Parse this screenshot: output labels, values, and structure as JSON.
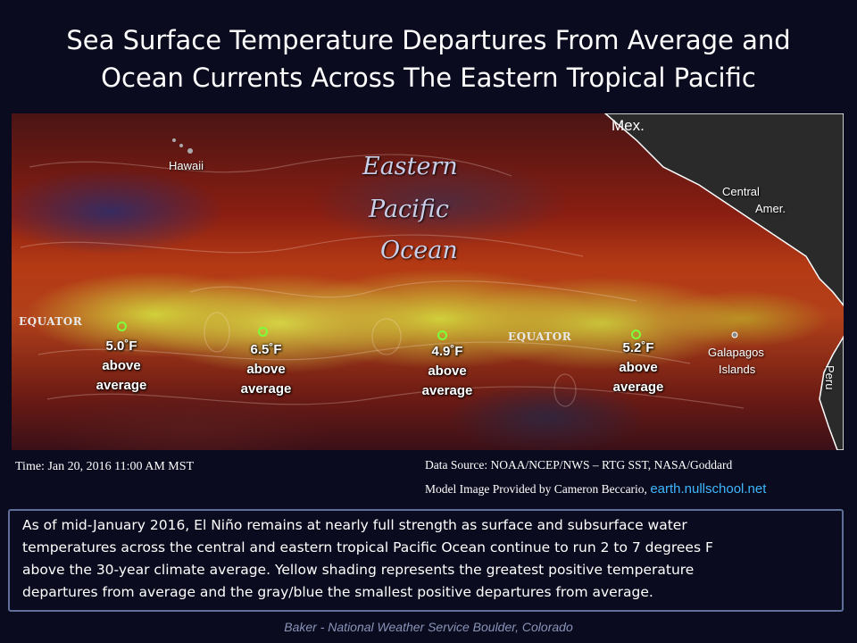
{
  "title": {
    "line1": "Sea Surface Temperature Departures From Average and",
    "line2": "Ocean Currents Across The Eastern Tropical Pacific"
  },
  "map": {
    "ocean_name": [
      "Eastern",
      "Pacific",
      "Ocean"
    ],
    "places": {
      "hawaii": "Hawaii",
      "mexico": "Mex.",
      "central_america": [
        "Central",
        "Amer."
      ],
      "galapagos": [
        "Galapagos",
        "Islands"
      ],
      "peru": "Peru"
    },
    "equator_label": "EQUATOR",
    "departures": [
      {
        "value": "5.0˚F",
        "line2": "above",
        "line3": "average"
      },
      {
        "value": "6.5˚F",
        "line2": "above",
        "line3": "average"
      },
      {
        "value": "4.9˚F",
        "line2": "above",
        "line3": "average"
      },
      {
        "value": "5.2˚F",
        "line2": "above",
        "line3": "average"
      }
    ],
    "colors": {
      "marker": "#7cff3a",
      "warmest": "#d8dc50",
      "warm": "#b43a14",
      "least": "#2c2f6e"
    }
  },
  "time": "Time: Jan 20, 2016  11:00 AM MST",
  "source": "Data Source: NOAA/NCEP/NWS  – RTG SST, NASA/Goddard",
  "credit": {
    "text": "Model Image Provided by Cameron Beccario,",
    "link": "earth.nullschool.net"
  },
  "description": [
    "As of mid-January 2016, El Niño remains at nearly full strength as surface and subsurface water",
    "temperatures across the central and eastern tropical Pacific Ocean continue to run 2 to 7 degrees  F",
    "above the 30-year climate average. Yellow shading represents the greatest positive temperature",
    "departures from average and the gray/blue the smallest positive departures from average."
  ],
  "footer": "Baker - National Weather Service Boulder, Colorado"
}
